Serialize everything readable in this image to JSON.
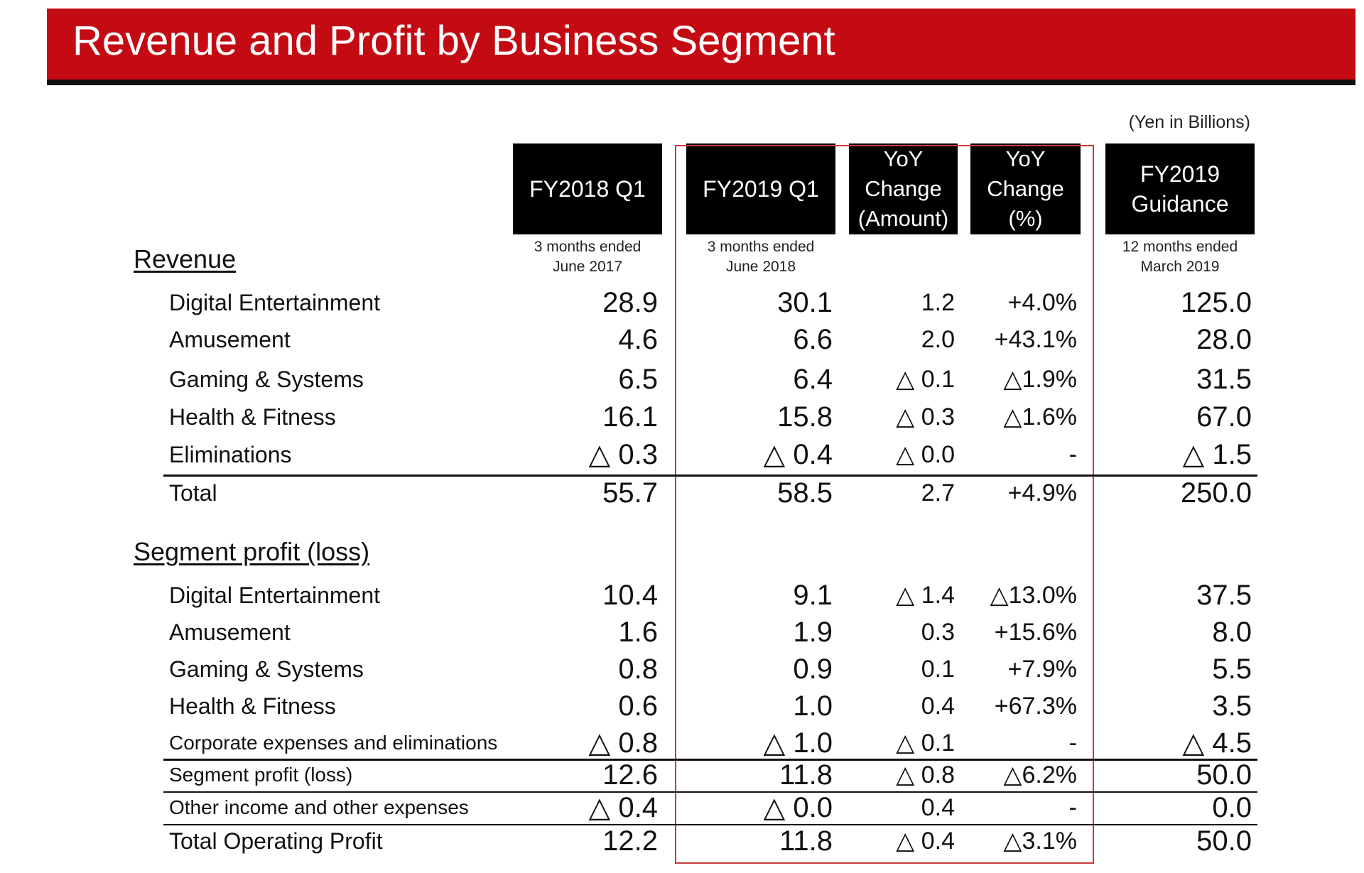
{
  "title": "Revenue and Profit by Business Segment",
  "unit_note": "(Yen in Billions)",
  "columns": [
    {
      "header": "FY2018 Q1",
      "sub": "3 months ended\nJune 2017"
    },
    {
      "header": "FY2019 Q1",
      "sub": "3 months ended\nJune 2018"
    },
    {
      "header": "YoY\nChange\n(Amount)",
      "sub": ""
    },
    {
      "header": "YoY\nChange\n(%)",
      "sub": ""
    },
    {
      "header": "FY2019\nGuidance",
      "sub": "12 months ended\nMarch 2019"
    }
  ],
  "revenue": {
    "heading": "Revenue",
    "rows": [
      {
        "label": "Digital Entertainment",
        "fy2018_q1": "28.9",
        "fy2019_q1": "30.1",
        "yoy_amount": "1.2",
        "yoy_pct": "+4.0%",
        "guidance": "125.0"
      },
      {
        "label": "Amusement",
        "fy2018_q1": "4.6",
        "fy2019_q1": "6.6",
        "yoy_amount": "2.0",
        "yoy_pct": "+43.1%",
        "guidance": "28.0"
      },
      {
        "label": "Gaming & Systems",
        "fy2018_q1": "6.5",
        "fy2019_q1": "6.4",
        "yoy_amount": "△ 0.1",
        "yoy_pct": "△1.9%",
        "guidance": "31.5"
      },
      {
        "label": "Health & Fitness",
        "fy2018_q1": "16.1",
        "fy2019_q1": "15.8",
        "yoy_amount": "△ 0.3",
        "yoy_pct": "△1.6%",
        "guidance": "67.0"
      },
      {
        "label": "Eliminations",
        "fy2018_q1": "△ 0.3",
        "fy2019_q1": "△ 0.4",
        "yoy_amount": "△ 0.0",
        "yoy_pct": "-",
        "guidance": "△ 1.5"
      },
      {
        "label": "Total",
        "fy2018_q1": "55.7",
        "fy2019_q1": "58.5",
        "yoy_amount": "2.7",
        "yoy_pct": "+4.9%",
        "guidance": "250.0"
      }
    ]
  },
  "profit": {
    "heading": "Segment profit (loss)",
    "rows": [
      {
        "label": "Digital Entertainment",
        "fy2018_q1": "10.4",
        "fy2019_q1": "9.1",
        "yoy_amount": "△ 1.4",
        "yoy_pct": "△13.0%",
        "guidance": "37.5"
      },
      {
        "label": "Amusement",
        "fy2018_q1": "1.6",
        "fy2019_q1": "1.9",
        "yoy_amount": "0.3",
        "yoy_pct": "+15.6%",
        "guidance": "8.0"
      },
      {
        "label": "Gaming & Systems",
        "fy2018_q1": "0.8",
        "fy2019_q1": "0.9",
        "yoy_amount": "0.1",
        "yoy_pct": "+7.9%",
        "guidance": "5.5"
      },
      {
        "label": "Health & Fitness",
        "fy2018_q1": "0.6",
        "fy2019_q1": "1.0",
        "yoy_amount": "0.4",
        "yoy_pct": "+67.3%",
        "guidance": "3.5"
      },
      {
        "label": "Corporate expenses and eliminations",
        "fy2018_q1": "△ 0.8",
        "fy2019_q1": "△ 1.0",
        "yoy_amount": "△ 0.1",
        "yoy_pct": "-",
        "guidance": "△ 4.5"
      },
      {
        "label": "Segment profit (loss)",
        "fy2018_q1": "12.6",
        "fy2019_q1": "11.8",
        "yoy_amount": "△ 0.8",
        "yoy_pct": "△6.2%",
        "guidance": "50.0"
      },
      {
        "label": "Other income and other expenses",
        "fy2018_q1": "△ 0.4",
        "fy2019_q1": "△ 0.0",
        "yoy_amount": "0.4",
        "yoy_pct": "-",
        "guidance": "0.0"
      },
      {
        "label": "Total Operating Profit",
        "fy2018_q1": "12.2",
        "fy2019_q1": "11.8",
        "yoy_amount": "△ 0.4",
        "yoy_pct": "△3.1%",
        "guidance": "50.0"
      }
    ]
  },
  "colors": {
    "banner": "#c40a12",
    "header_bg": "#000000",
    "highlight_border": "#cc3a3a"
  }
}
